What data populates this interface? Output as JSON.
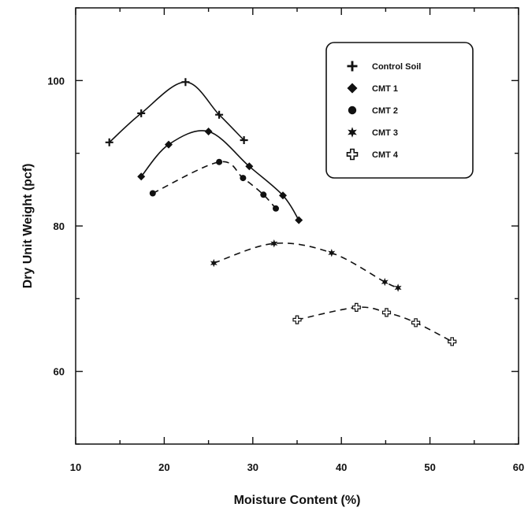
{
  "chart_data": {
    "type": "line",
    "xlabel": "Moisture Content (%)",
    "ylabel": "Dry Unit Weight (pcf)",
    "xlim": [
      10,
      60
    ],
    "ylim": [
      50,
      110
    ],
    "xticks": [
      10,
      20,
      30,
      40,
      50,
      60
    ],
    "yticks": [
      60,
      80,
      100
    ],
    "grid": false,
    "legend_position": "top-right",
    "series": [
      {
        "name": "Control Soil",
        "marker": "plus",
        "line": "solid",
        "x": [
          13.8,
          17.4,
          22.4,
          26.2,
          29.0
        ],
        "y": [
          91.5,
          95.5,
          99.8,
          95.3,
          91.8
        ]
      },
      {
        "name": "CMT 1",
        "marker": "diamond",
        "line": "solid",
        "x": [
          17.4,
          20.5,
          25.0,
          29.6,
          33.4,
          35.2
        ],
        "y": [
          86.8,
          91.2,
          93.0,
          88.2,
          84.2,
          80.8
        ]
      },
      {
        "name": "CMT 2",
        "marker": "circle",
        "line": "dashed",
        "x": [
          18.7,
          26.2,
          28.9,
          31.2,
          32.6
        ],
        "y": [
          84.5,
          88.8,
          86.6,
          84.3,
          82.4
        ]
      },
      {
        "name": "CMT 3",
        "marker": "star",
        "line": "dashed",
        "x": [
          25.6,
          32.4,
          38.9,
          44.9,
          46.4
        ],
        "y": [
          74.9,
          77.6,
          76.3,
          72.3,
          71.5
        ]
      },
      {
        "name": "CMT 4",
        "marker": "open-plus",
        "line": "dashed",
        "x": [
          35.0,
          41.7,
          45.1,
          48.4,
          52.5
        ],
        "y": [
          67.1,
          68.8,
          68.1,
          66.7,
          64.1
        ]
      }
    ]
  }
}
